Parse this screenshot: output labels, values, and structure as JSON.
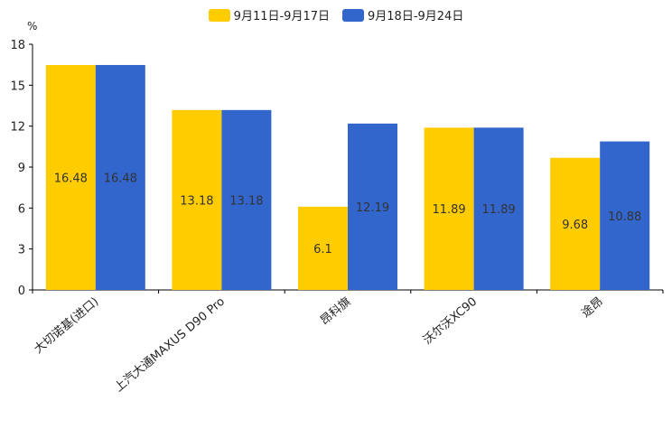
{
  "chart_data": {
    "type": "bar",
    "title": "",
    "xlabel": "",
    "ylabel": "%",
    "ylim": [
      0,
      18
    ],
    "yticks": [
      0,
      3,
      6,
      9,
      12,
      15,
      18
    ],
    "categories": [
      "大切诺基(进口)",
      "上汽大通MAXUS D90 Pro",
      "昂科旗",
      "沃尔沃XC90",
      "途昂"
    ],
    "series": [
      {
        "name": "9月11日-9月17日",
        "color": "#ffcc00",
        "values": [
          16.48,
          13.18,
          6.1,
          11.89,
          9.68
        ]
      },
      {
        "name": "9月18日-9月24日",
        "color": "#3366cc",
        "values": [
          16.48,
          13.18,
          12.19,
          11.89,
          10.88
        ]
      }
    ],
    "legend_position": "top-center",
    "data_labels": true,
    "grid": false
  }
}
